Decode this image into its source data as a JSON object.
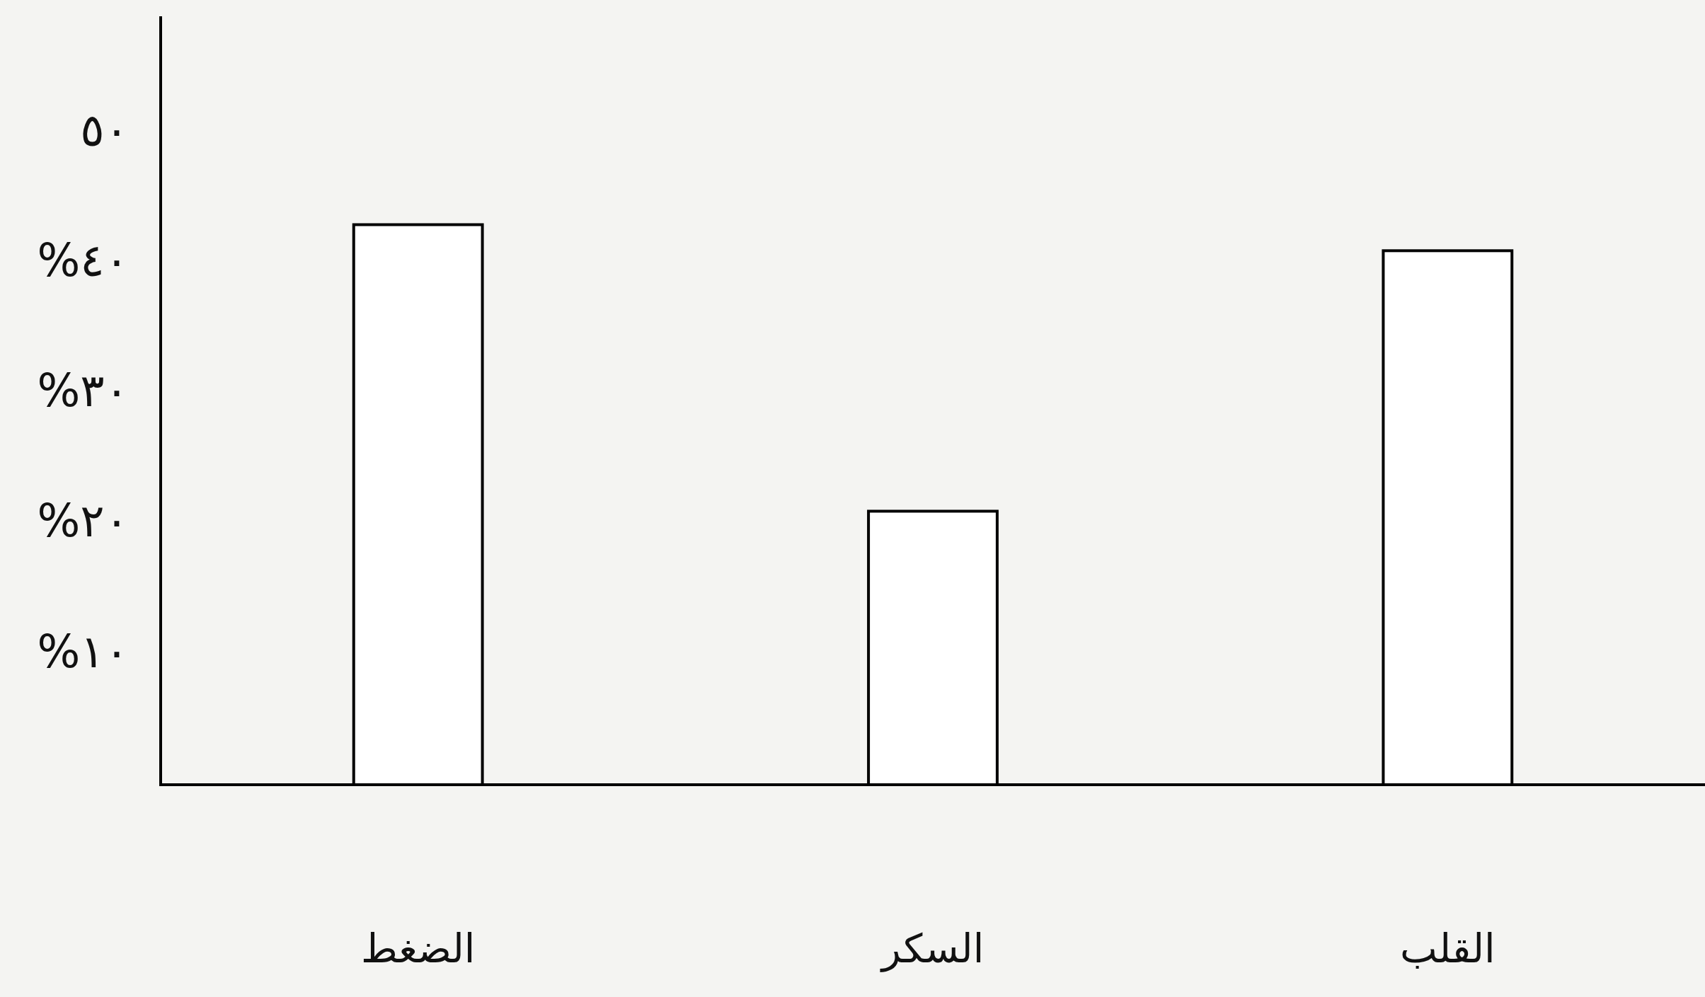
{
  "chart_data": {
    "type": "bar",
    "categories": [
      "الضغط",
      "السكر",
      "القلب"
    ],
    "values": [
      43,
      21,
      41
    ],
    "color": "#ffffff",
    "ylim": [
      0,
      59
    ],
    "yticks": [
      {
        "value": 10,
        "label": "%١٠"
      },
      {
        "value": 20,
        "label": "%٢٠"
      },
      {
        "value": 30,
        "label": "%٣٠"
      },
      {
        "value": 40,
        "label": "%٤٠"
      },
      {
        "value": 50,
        "label": "٥٠"
      }
    ],
    "grid": false
  }
}
